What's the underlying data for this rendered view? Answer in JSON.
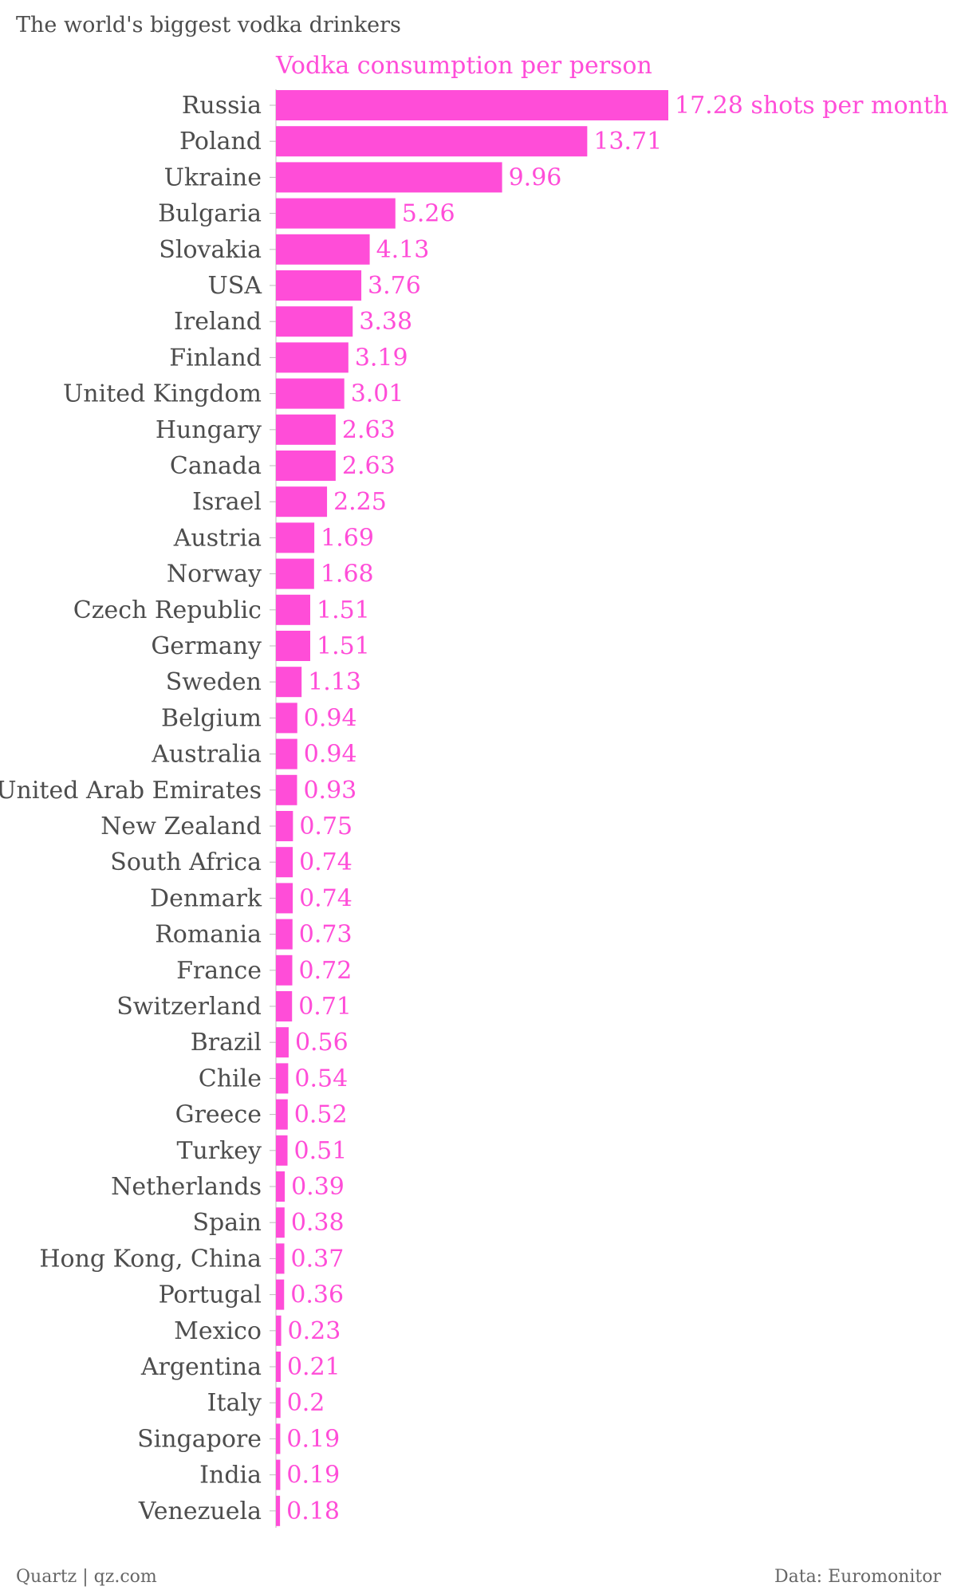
{
  "chart_data": {
    "type": "bar",
    "orientation": "horizontal",
    "title": "The world's biggest vodka drinkers",
    "series_title": "Vodka consumption per person",
    "unit_suffix": "shots per month",
    "categories": [
      "Russia",
      "Poland",
      "Ukraine",
      "Bulgaria",
      "Slovakia",
      "USA",
      "Ireland",
      "Finland",
      "United Kingdom",
      "Hungary",
      "Canada",
      "Israel",
      "Austria",
      "Norway",
      "Czech Republic",
      "Germany",
      "Sweden",
      "Belgium",
      "Australia",
      "United Arab Emirates",
      "New Zealand",
      "South Africa",
      "Denmark",
      "Romania",
      "France",
      "Switzerland",
      "Brazil",
      "Chile",
      "Greece",
      "Turkey",
      "Netherlands",
      "Spain",
      "Hong Kong, China",
      "Portugal",
      "Mexico",
      "Argentina",
      "Italy",
      "Singapore",
      "India",
      "Venezuela"
    ],
    "values": [
      17.28,
      13.71,
      9.96,
      5.26,
      4.13,
      3.76,
      3.38,
      3.19,
      3.01,
      2.63,
      2.63,
      2.25,
      1.69,
      1.68,
      1.51,
      1.51,
      1.13,
      0.94,
      0.94,
      0.93,
      0.75,
      0.74,
      0.74,
      0.73,
      0.72,
      0.71,
      0.56,
      0.54,
      0.52,
      0.51,
      0.39,
      0.38,
      0.37,
      0.36,
      0.23,
      0.21,
      0.2,
      0.19,
      0.19,
      0.18
    ],
    "value_labels": [
      "17.28 shots per month",
      "13.71",
      "9.96",
      "5.26",
      "4.13",
      "3.76",
      "3.38",
      "3.19",
      "3.01",
      "2.63",
      "2.63",
      "2.25",
      "1.69",
      "1.68",
      "1.51",
      "1.51",
      "1.13",
      "0.94",
      "0.94",
      "0.93",
      "0.75",
      "0.74",
      "0.74",
      "0.73",
      "0.72",
      "0.71",
      "0.56",
      "0.54",
      "0.52",
      "0.51",
      "0.39",
      "0.38",
      "0.37",
      "0.36",
      "0.23",
      "0.21",
      "0.2",
      "0.19",
      "0.19",
      "0.18"
    ],
    "xlim": [
      0,
      17.28
    ],
    "grid": false,
    "legend": "none",
    "colors": {
      "bar": "#ff4dd8",
      "value_text": "#ff4dd8",
      "text": "#4d4d4d"
    }
  },
  "footer": {
    "source_left": "Quartz | qz.com",
    "source_right": "Data: Euromonitor"
  }
}
